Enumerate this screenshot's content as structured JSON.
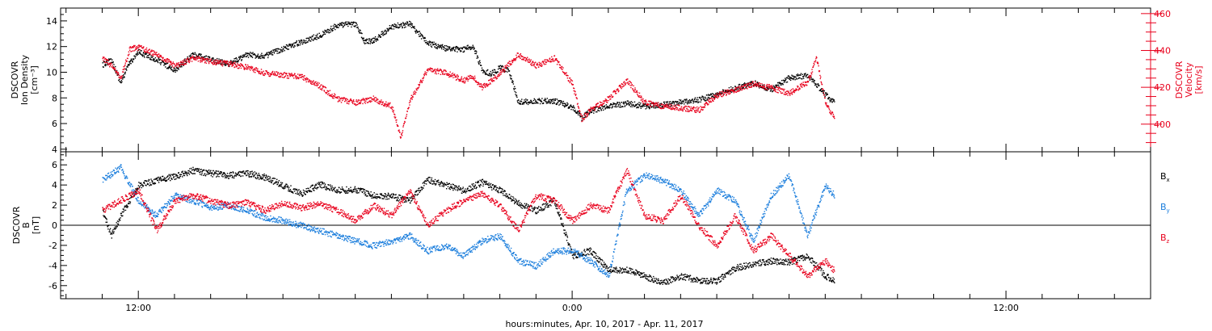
{
  "chart_data": [
    {
      "type": "scatter",
      "panel": "top",
      "ylabel_left": [
        "DSCOVR",
        "Ion Density",
        "[cm⁻³]"
      ],
      "ylabel_right": [
        "DSCOVR",
        "Velocity",
        "[km/s]"
      ],
      "ylim_left": [
        3.8,
        15
      ],
      "ylim_right": [
        385,
        463
      ],
      "yticks_left": [
        4,
        6,
        8,
        10,
        12,
        14
      ],
      "yticks_right": [
        400,
        420,
        440,
        460
      ],
      "series": [
        {
          "axis": "left",
          "color": "#000000",
          "points": [
            [
              4.0,
              10.6
            ],
            [
              4.5,
              11.0
            ],
            [
              5.0,
              9.2
            ],
            [
              5.5,
              10.8
            ],
            [
              6.0,
              11.6
            ],
            [
              7.0,
              11.0
            ],
            [
              8.0,
              10.2
            ],
            [
              9.0,
              11.4
            ],
            [
              10.0,
              11.0
            ],
            [
              11.0,
              10.7
            ],
            [
              12.0,
              11.4
            ],
            [
              13.0,
              11.3
            ],
            [
              14.0,
              11.9
            ],
            [
              15.0,
              12.4
            ],
            [
              16.0,
              12.9
            ],
            [
              17.0,
              13.7
            ],
            [
              18.0,
              13.8
            ],
            [
              18.5,
              12.4
            ],
            [
              19.0,
              12.5
            ],
            [
              20.0,
              13.6
            ],
            [
              21.0,
              13.8
            ],
            [
              22.0,
              12.3
            ],
            [
              23.0,
              11.9
            ],
            [
              24.0,
              11.8
            ],
            [
              24.5,
              12.1
            ],
            [
              25.0,
              10.2
            ],
            [
              25.5,
              9.9
            ],
            [
              26.0,
              10.4
            ],
            [
              26.5,
              10.1
            ],
            [
              27.0,
              7.7
            ],
            [
              28.0,
              7.8
            ],
            [
              29.0,
              7.8
            ],
            [
              30.0,
              7.3
            ],
            [
              30.5,
              6.5
            ],
            [
              31.0,
              7.0
            ],
            [
              32.0,
              7.4
            ],
            [
              33.0,
              7.6
            ],
            [
              34.0,
              7.4
            ],
            [
              35.0,
              7.5
            ],
            [
              36.0,
              7.7
            ],
            [
              37.0,
              7.9
            ],
            [
              38.0,
              8.3
            ],
            [
              39.0,
              8.8
            ],
            [
              40.0,
              9.2
            ],
            [
              41.0,
              8.7
            ],
            [
              42.0,
              9.6
            ],
            [
              43.0,
              9.8
            ],
            [
              44.0,
              8.3
            ],
            [
              44.5,
              7.6
            ]
          ]
        },
        {
          "axis": "right",
          "color": "#e8001c",
          "points": [
            [
              4.0,
              436
            ],
            [
              4.5,
              432
            ],
            [
              5.0,
              425
            ],
            [
              5.5,
              441
            ],
            [
              6.0,
              442
            ],
            [
              7.0,
              438
            ],
            [
              8.0,
              432
            ],
            [
              9.0,
              436
            ],
            [
              10.0,
              434
            ],
            [
              11.0,
              433
            ],
            [
              12.0,
              431
            ],
            [
              13.0,
              428
            ],
            [
              14.0,
              427
            ],
            [
              15.0,
              426
            ],
            [
              16.0,
              421
            ],
            [
              17.0,
              414
            ],
            [
              18.0,
              412
            ],
            [
              19.0,
              414
            ],
            [
              20.0,
              410
            ],
            [
              20.5,
              393
            ],
            [
              21.0,
              413
            ],
            [
              22.0,
              430
            ],
            [
              23.0,
              428
            ],
            [
              24.0,
              424
            ],
            [
              24.5,
              426
            ],
            [
              25.0,
              420
            ],
            [
              26.0,
              428
            ],
            [
              27.0,
              438
            ],
            [
              28.0,
              432
            ],
            [
              29.0,
              436
            ],
            [
              30.0,
              422
            ],
            [
              30.5,
              403
            ],
            [
              31.0,
              408
            ],
            [
              32.0,
              414
            ],
            [
              33.0,
              424
            ],
            [
              34.0,
              412
            ],
            [
              35.0,
              410
            ],
            [
              36.0,
              409
            ],
            [
              37.0,
              408
            ],
            [
              38.0,
              416
            ],
            [
              39.0,
              419
            ],
            [
              40.0,
              422
            ],
            [
              41.0,
              420
            ],
            [
              42.0,
              417
            ],
            [
              43.0,
              423
            ],
            [
              43.5,
              436
            ],
            [
              44.0,
              412
            ],
            [
              44.5,
              403
            ]
          ]
        }
      ]
    },
    {
      "type": "scatter",
      "panel": "bottom",
      "ylabel_left": [
        "DSCOVR",
        "B",
        "[nT]"
      ],
      "ylim_left": [
        -7.3,
        7.3
      ],
      "yticks_left": [
        -6,
        -4,
        -2,
        0,
        2,
        4,
        6
      ],
      "hline": 0,
      "legend": [
        "B",
        "B",
        "B"
      ],
      "legend_subscripts": [
        "x",
        "y",
        "z"
      ],
      "legend_position": "right",
      "series": [
        {
          "name": "Bx",
          "color": "#000000",
          "points": [
            [
              4.0,
              1.5
            ],
            [
              4.5,
              -1.0
            ],
            [
              5.0,
              1.0
            ],
            [
              6.0,
              4.0
            ],
            [
              7.0,
              4.5
            ],
            [
              8.0,
              4.9
            ],
            [
              9.0,
              5.5
            ],
            [
              10.0,
              5.2
            ],
            [
              11.0,
              5.0
            ],
            [
              12.0,
              5.2
            ],
            [
              13.0,
              4.8
            ],
            [
              14.0,
              4.0
            ],
            [
              15.0,
              3.2
            ],
            [
              16.0,
              4.1
            ],
            [
              17.0,
              3.5
            ],
            [
              18.0,
              3.6
            ],
            [
              19.0,
              3.0
            ],
            [
              20.0,
              2.9
            ],
            [
              21.0,
              2.5
            ],
            [
              22.0,
              4.6
            ],
            [
              23.0,
              4.0
            ],
            [
              24.0,
              3.5
            ],
            [
              25.0,
              4.3
            ],
            [
              26.0,
              3.5
            ],
            [
              27.0,
              2.2
            ],
            [
              28.0,
              1.5
            ],
            [
              29.0,
              2.5
            ],
            [
              30.0,
              -3.0
            ],
            [
              31.0,
              -2.5
            ],
            [
              32.0,
              -4.4
            ],
            [
              33.0,
              -4.4
            ],
            [
              34.0,
              -5.0
            ],
            [
              35.0,
              -5.7
            ],
            [
              36.0,
              -5.0
            ],
            [
              37.0,
              -5.5
            ],
            [
              38.0,
              -5.5
            ],
            [
              39.0,
              -4.2
            ],
            [
              40.0,
              -3.8
            ],
            [
              41.0,
              -3.5
            ],
            [
              42.0,
              -3.6
            ],
            [
              43.0,
              -3.0
            ],
            [
              44.0,
              -5.0
            ],
            [
              44.5,
              -5.5
            ]
          ]
        },
        {
          "name": "By",
          "color": "#1a7ddc",
          "points": [
            [
              4.0,
              4.5
            ],
            [
              5.0,
              5.8
            ],
            [
              6.0,
              2.5
            ],
            [
              7.0,
              1.0
            ],
            [
              8.0,
              3.0
            ],
            [
              9.0,
              2.5
            ],
            [
              10.0,
              1.8
            ],
            [
              11.0,
              2.0
            ],
            [
              12.0,
              1.5
            ],
            [
              13.0,
              0.8
            ],
            [
              14.0,
              0.5
            ],
            [
              15.0,
              0.0
            ],
            [
              16.0,
              -0.5
            ],
            [
              17.0,
              -1.0
            ],
            [
              18.0,
              -1.5
            ],
            [
              19.0,
              -2.0
            ],
            [
              20.0,
              -1.5
            ],
            [
              21.0,
              -1.0
            ],
            [
              22.0,
              -2.5
            ],
            [
              23.0,
              -2.0
            ],
            [
              24.0,
              -3.0
            ],
            [
              25.0,
              -1.5
            ],
            [
              26.0,
              -1.0
            ],
            [
              27.0,
              -3.5
            ],
            [
              28.0,
              -4.0
            ],
            [
              29.0,
              -2.5
            ],
            [
              30.0,
              -2.5
            ],
            [
              31.0,
              -3.5
            ],
            [
              32.0,
              -5.0
            ],
            [
              33.0,
              3.5
            ],
            [
              34.0,
              5.0
            ],
            [
              35.0,
              4.5
            ],
            [
              36.0,
              3.5
            ],
            [
              37.0,
              1.0
            ],
            [
              38.0,
              3.5
            ],
            [
              39.0,
              2.5
            ],
            [
              40.0,
              -1.5
            ],
            [
              41.0,
              3.0
            ],
            [
              42.0,
              5.0
            ],
            [
              43.0,
              -1.0
            ],
            [
              44.0,
              4.0
            ],
            [
              44.5,
              3.0
            ]
          ]
        },
        {
          "name": "Bz",
          "color": "#e8001c",
          "points": [
            [
              4.0,
              1.5
            ],
            [
              5.0,
              2.5
            ],
            [
              6.0,
              3.5
            ],
            [
              7.0,
              -0.5
            ],
            [
              8.0,
              2.5
            ],
            [
              9.0,
              3.0
            ],
            [
              10.0,
              2.5
            ],
            [
              11.0,
              2.0
            ],
            [
              12.0,
              2.3
            ],
            [
              13.0,
              1.5
            ],
            [
              14.0,
              2.3
            ],
            [
              15.0,
              1.8
            ],
            [
              16.0,
              2.2
            ],
            [
              17.0,
              1.5
            ],
            [
              18.0,
              0.5
            ],
            [
              19.0,
              2.0
            ],
            [
              20.0,
              1.0
            ],
            [
              21.0,
              3.5
            ],
            [
              22.0,
              0.0
            ],
            [
              23.0,
              1.5
            ],
            [
              24.0,
              2.5
            ],
            [
              25.0,
              3.2
            ],
            [
              26.0,
              2.0
            ],
            [
              27.0,
              -0.5
            ],
            [
              28.0,
              3.0
            ],
            [
              29.0,
              2.5
            ],
            [
              30.0,
              0.5
            ],
            [
              31.0,
              2.0
            ],
            [
              32.0,
              1.5
            ],
            [
              33.0,
              5.5
            ],
            [
              34.0,
              1.0
            ],
            [
              35.0,
              0.5
            ],
            [
              36.0,
              3.0
            ],
            [
              37.0,
              0.0
            ],
            [
              38.0,
              -2.0
            ],
            [
              39.0,
              1.0
            ],
            [
              40.0,
              -2.5
            ],
            [
              41.0,
              -1.0
            ],
            [
              42.0,
              -3.0
            ],
            [
              43.0,
              -5.0
            ],
            [
              44.0,
              -3.5
            ],
            [
              44.5,
              -4.5
            ]
          ]
        }
      ]
    }
  ],
  "xaxis": {
    "xlim": [
      1.7,
      62
    ],
    "major_ticks": [
      {
        "x": 6,
        "label": "12:00"
      },
      {
        "x": 30,
        "label": "0:00"
      },
      {
        "x": 54,
        "label": "12:00"
      }
    ],
    "minor_tick_step": 2,
    "xlabel": "hours:minutes, Apr. 10, 2017 - Apr. 11, 2017"
  }
}
